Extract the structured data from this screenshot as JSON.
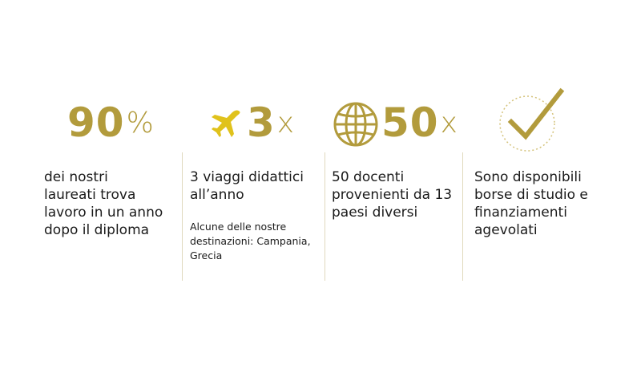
{
  "stats": [
    {
      "number": "90",
      "unit": "%",
      "lines": [
        "dei nostri",
        "laureati trova",
        "lavoro in un anno",
        "dopo il diploma"
      ]
    },
    {
      "number": "3",
      "unit": "x",
      "lines": [
        "3 viaggi didattici",
        "all’anno"
      ],
      "note": [
        "Alcune delle nostre",
        "destinazioni: Campania,",
        "Grecia"
      ]
    },
    {
      "number": "50",
      "unit": "x",
      "lines": [
        "50 docenti",
        "provenienti da 13",
        "paesi diversi"
      ]
    },
    {
      "lines": [
        "Sono disponibili",
        "borse di studio e",
        "finanziamenti",
        "agevolati"
      ]
    }
  ]
}
